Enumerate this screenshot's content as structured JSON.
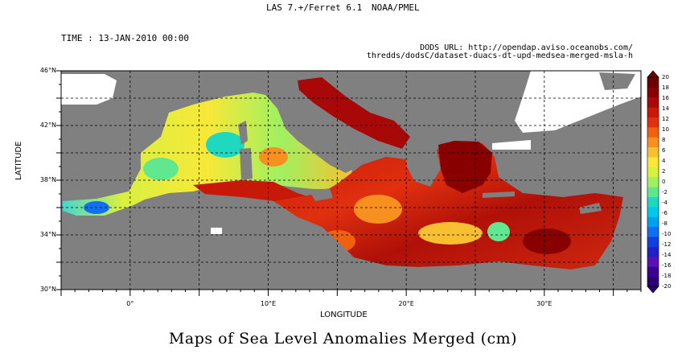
{
  "header": {
    "software": "LAS 7.+/Ferret 6.1",
    "agency": "NOAA/PMEL",
    "time_label": "TIME : 13-JAN-2010 00:00",
    "dods_line1": "DODS URL: http://opendap.aviso.oceanobs.com/",
    "dods_line2": "thredds/dodsC/dataset-duacs-dt-upd-medsea-merged-msla-h"
  },
  "map": {
    "title": "Maps of Sea Level Anomalies Merged (cm)",
    "xlabel": "LONGITUDE",
    "ylabel": "LATITUDE",
    "lon_range": [
      -5,
      37
    ],
    "lat_range": [
      30,
      46
    ],
    "x_ticks": [
      {
        "v": 0,
        "label": "0°"
      },
      {
        "v": 10,
        "label": "10°E"
      },
      {
        "v": 20,
        "label": "20°E"
      },
      {
        "v": 30,
        "label": "30°E"
      }
    ],
    "y_ticks": [
      {
        "v": 30,
        "label": "30°N"
      },
      {
        "v": 34,
        "label": "34°N"
      },
      {
        "v": 38,
        "label": "38°N"
      },
      {
        "v": 42,
        "label": "42°N"
      },
      {
        "v": 46,
        "label": "46°N"
      }
    ],
    "grid_lon": [
      -5,
      0,
      5,
      10,
      15,
      20,
      25,
      30,
      35
    ],
    "grid_lat": [
      30,
      32,
      34,
      36,
      38,
      40,
      42,
      44,
      46
    ],
    "colors": {
      "land": "#808080",
      "nodata": "#ffffff"
    }
  },
  "colorbar": {
    "min": -20,
    "max": 20,
    "ticks": [
      "20",
      "18",
      "16",
      "14",
      "12",
      "10",
      "8",
      "6",
      "4",
      "2",
      "0",
      "-2",
      "-4",
      "-6",
      "-8",
      "-10",
      "-12",
      "-14",
      "-16",
      "-18",
      "-20"
    ],
    "colors": [
      "#2a0074",
      "#3b0090",
      "#5a10b4",
      "#2020c8",
      "#1040e0",
      "#1070f0",
      "#00a0f0",
      "#00c8e8",
      "#20d8c0",
      "#60e890",
      "#a0f060",
      "#d8f040",
      "#f8e838",
      "#f8c030",
      "#f89020",
      "#f06010",
      "#e03010",
      "#c81808",
      "#a80808",
      "#880000",
      "#6a0000"
    ]
  }
}
